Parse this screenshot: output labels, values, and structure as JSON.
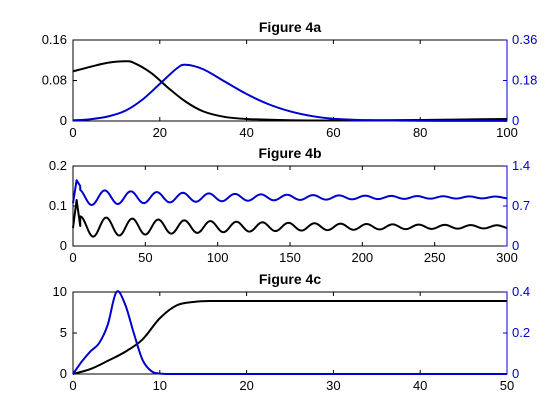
{
  "chart_data": [
    {
      "type": "line",
      "title": "Figure 4a",
      "xlim": [
        0,
        100
      ],
      "xticks": [
        0,
        20,
        40,
        60,
        80,
        100
      ],
      "left_axis": {
        "color": "#000000",
        "ylim": [
          0,
          0.16
        ],
        "yticks": [
          0,
          0.08,
          0.16
        ],
        "tick_labels": [
          "0",
          "0.08",
          "0.16"
        ]
      },
      "right_axis": {
        "color": "#0000cc",
        "ylim": [
          0,
          0.36
        ],
        "yticks": [
          0,
          0.18,
          0.36
        ],
        "tick_labels": [
          "0",
          "0.18",
          "0.36"
        ]
      },
      "grid": false,
      "series": [
        {
          "axis": "left",
          "color": "#000000",
          "x": [
            0,
            4,
            8,
            12,
            14,
            18,
            22,
            26,
            30,
            35,
            40,
            50,
            60,
            70,
            80,
            90,
            100
          ],
          "y": [
            0.098,
            0.107,
            0.115,
            0.118,
            0.115,
            0.095,
            0.065,
            0.038,
            0.019,
            0.008,
            0.004,
            0.0015,
            0.001,
            0.0015,
            0.002,
            0.003,
            0.004
          ]
        },
        {
          "axis": "right",
          "color": "#0000cc",
          "x": [
            0,
            4,
            8,
            12,
            16,
            20,
            24,
            26,
            30,
            35,
            40,
            45,
            50,
            55,
            60,
            65,
            70,
            80,
            90,
            100
          ],
          "y": [
            0.003,
            0.008,
            0.02,
            0.045,
            0.095,
            0.165,
            0.235,
            0.25,
            0.23,
            0.175,
            0.12,
            0.075,
            0.043,
            0.022,
            0.01,
            0.005,
            0.003,
            0.001,
            0.0005,
            0.0003
          ]
        }
      ]
    },
    {
      "type": "line",
      "title": "Figure 4b",
      "xlim": [
        0,
        300
      ],
      "xticks": [
        0,
        50,
        100,
        150,
        200,
        250,
        300
      ],
      "left_axis": {
        "color": "#000000",
        "ylim": [
          0,
          0.2
        ],
        "yticks": [
          0,
          0.1,
          0.2
        ],
        "tick_labels": [
          "0",
          "0.1",
          "0.2"
        ]
      },
      "right_axis": {
        "color": "#0000cc",
        "ylim": [
          0,
          1.4
        ],
        "yticks": [
          0,
          0.7,
          1.4
        ],
        "tick_labels": [
          "0",
          "0.7",
          "1.4"
        ]
      },
      "grid": false,
      "series": [
        {
          "axis": "left",
          "color": "#000000",
          "model": "damped_oscillation",
          "initial": [
            0.045,
            0.115,
            0.05
          ],
          "base": 0.048,
          "amplitude": 0.026,
          "decay_tau": 150,
          "period": 18,
          "phase": 0,
          "x_start": 5
        },
        {
          "axis": "right",
          "color": "#0000cc",
          "model": "damped_oscillation",
          "initial": [
            0.75,
            1.15,
            1.05
          ],
          "base": 0.85,
          "amplitude": 0.14,
          "decay_tau": 130,
          "period": 18,
          "phase": 0.35,
          "x_start": 5
        }
      ]
    },
    {
      "type": "line",
      "title": "Figure 4c",
      "xlim": [
        0,
        50
      ],
      "xticks": [
        0,
        10,
        20,
        30,
        40,
        50
      ],
      "left_axis": {
        "color": "#000000",
        "ylim": [
          0,
          10
        ],
        "yticks": [
          0,
          5,
          10
        ],
        "tick_labels": [
          "0",
          "5",
          "10"
        ]
      },
      "right_axis": {
        "color": "#0000cc",
        "ylim": [
          0,
          0.4
        ],
        "yticks": [
          0,
          0.2,
          0.4
        ],
        "tick_labels": [
          "0",
          "0.2",
          "0.4"
        ]
      },
      "grid": false,
      "series": [
        {
          "axis": "left",
          "color": "#000000",
          "x": [
            0,
            2,
            4,
            6,
            8,
            10,
            12,
            14,
            16,
            20,
            30,
            40,
            50
          ],
          "y": [
            0,
            0.6,
            1.6,
            2.7,
            4.2,
            6.8,
            8.4,
            8.8,
            8.9,
            8.9,
            8.9,
            8.9,
            8.9
          ]
        },
        {
          "axis": "right",
          "color": "#0000cc",
          "x": [
            0,
            1,
            2,
            3,
            4,
            5,
            6,
            7,
            8,
            9,
            10,
            12,
            20,
            30,
            40,
            50
          ],
          "y": [
            0,
            0.06,
            0.11,
            0.15,
            0.24,
            0.4,
            0.34,
            0.2,
            0.07,
            0.015,
            0.002,
            0,
            0,
            0,
            0,
            0
          ]
        }
      ]
    }
  ]
}
